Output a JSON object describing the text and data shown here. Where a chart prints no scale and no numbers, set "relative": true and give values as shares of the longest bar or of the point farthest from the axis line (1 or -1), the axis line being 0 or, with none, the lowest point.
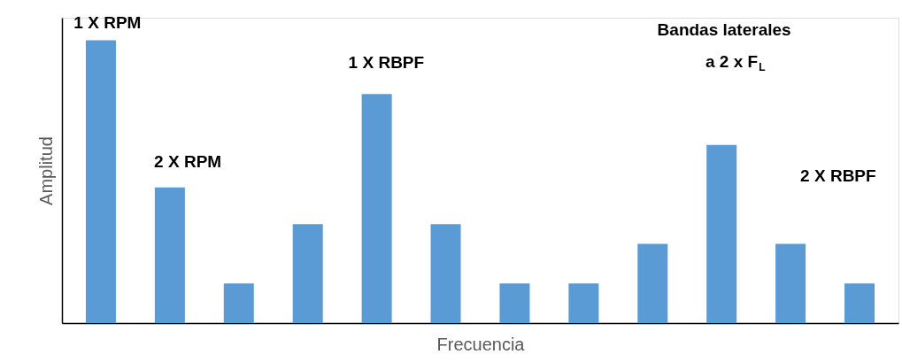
{
  "chart_data": {
    "type": "bar",
    "relative": true,
    "xlabel": "Frecuencia",
    "ylabel": "Amplitud",
    "color": "#5b9bd5",
    "categories": [
      null,
      null,
      null,
      null,
      null,
      null,
      null,
      null,
      null,
      null,
      null,
      null
    ],
    "values": [
      1.0,
      0.48,
      0.14,
      0.35,
      0.81,
      0.35,
      0.14,
      0.14,
      0.28,
      0.63,
      0.28,
      0.14
    ],
    "annotations": [
      "1 X RPM",
      "2 X RPM",
      "1 X RBPF",
      "Bandas laterales\na  2 x F$_{L}$",
      "2 X RBPF"
    ]
  }
}
